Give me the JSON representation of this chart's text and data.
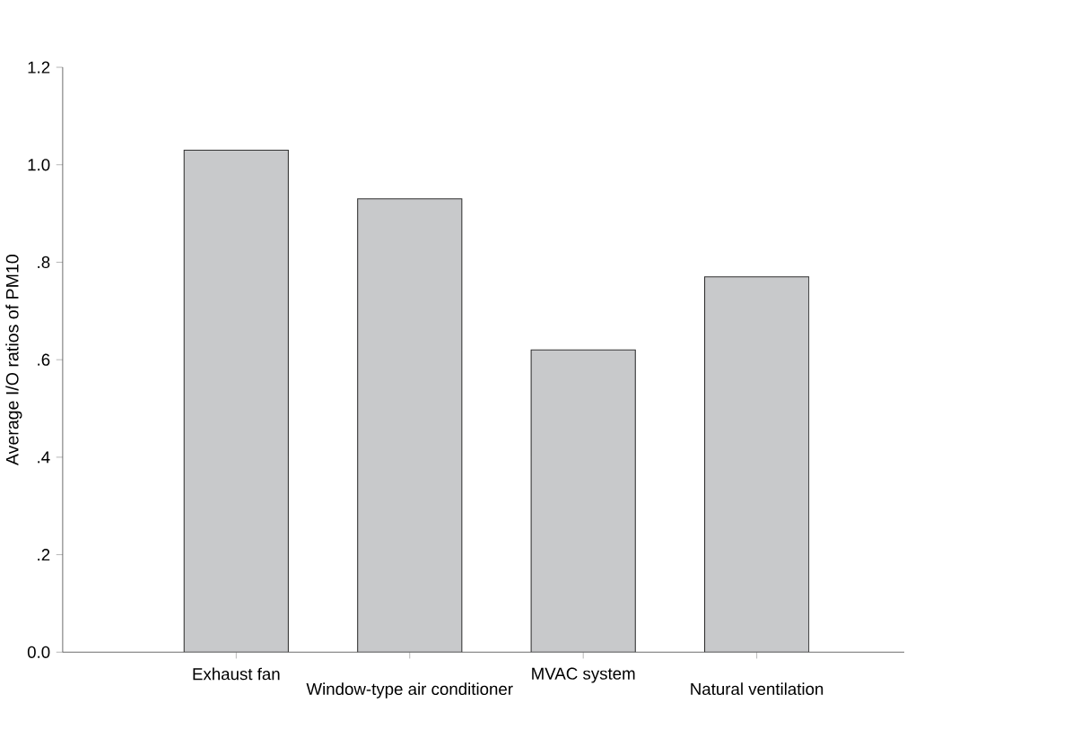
{
  "chart_data": {
    "type": "bar",
    "ylabel": "Average I/O ratios of PM10",
    "categories": [
      "Exhaust fan",
      "Window-type air conditioner",
      "MVAC system",
      "Natural ventilation"
    ],
    "values": [
      1.03,
      0.93,
      0.62,
      0.77
    ],
    "color": "#c8c9cb",
    "ylim": [
      0,
      1.2
    ],
    "yticks": [
      {
        "value": 0,
        "label": "0.0"
      },
      {
        "value": 0.2,
        "label": ".2"
      },
      {
        "value": 0.4,
        "label": ".4"
      },
      {
        "value": 0.6,
        "label": ".6"
      },
      {
        "value": 0.8,
        "label": ".8"
      },
      {
        "value": 1.0,
        "label": "1.0"
      },
      {
        "value": 1.2,
        "label": "1.2"
      }
    ],
    "grid": false
  }
}
